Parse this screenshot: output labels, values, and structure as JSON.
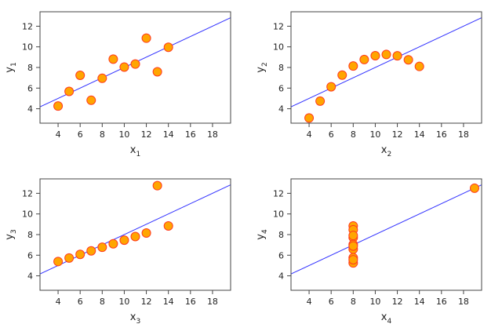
{
  "chart_data": [
    {
      "type": "scatter",
      "xlabel": {
        "base": "x",
        "sub": "1"
      },
      "ylabel": {
        "base": "y",
        "sub": "1"
      },
      "xlim": [
        3,
        19
      ],
      "ylim": [
        3,
        13
      ],
      "xticks": [
        4,
        6,
        8,
        10,
        12,
        14,
        16,
        18
      ],
      "yticks": [
        4,
        6,
        8,
        10,
        12
      ],
      "x": [
        10,
        8,
        13,
        9,
        11,
        14,
        6,
        4,
        12,
        7,
        5
      ],
      "y": [
        8.04,
        6.95,
        7.58,
        8.81,
        8.33,
        9.96,
        7.24,
        4.26,
        10.84,
        4.82,
        5.68
      ],
      "fit_line": {
        "intercept": 3.0,
        "slope": 0.5
      },
      "grid": false
    },
    {
      "type": "scatter",
      "xlabel": {
        "base": "x",
        "sub": "2"
      },
      "ylabel": {
        "base": "y",
        "sub": "2"
      },
      "xlim": [
        3,
        19
      ],
      "ylim": [
        3,
        13
      ],
      "xticks": [
        4,
        6,
        8,
        10,
        12,
        14,
        16,
        18
      ],
      "yticks": [
        4,
        6,
        8,
        10,
        12
      ],
      "x": [
        10,
        8,
        13,
        9,
        11,
        14,
        6,
        4,
        12,
        7,
        5
      ],
      "y": [
        9.14,
        8.14,
        8.74,
        8.77,
        9.26,
        8.1,
        6.13,
        3.1,
        9.13,
        7.26,
        4.74
      ],
      "fit_line": {
        "intercept": 3.0,
        "slope": 0.5
      },
      "grid": false
    },
    {
      "type": "scatter",
      "xlabel": {
        "base": "x",
        "sub": "3"
      },
      "ylabel": {
        "base": "y",
        "sub": "3"
      },
      "xlim": [
        3,
        19
      ],
      "ylim": [
        3,
        13
      ],
      "xticks": [
        4,
        6,
        8,
        10,
        12,
        14,
        16,
        18
      ],
      "yticks": [
        4,
        6,
        8,
        10,
        12
      ],
      "x": [
        10,
        8,
        13,
        9,
        11,
        14,
        6,
        4,
        12,
        7,
        5
      ],
      "y": [
        7.46,
        6.77,
        12.74,
        7.11,
        7.81,
        8.84,
        6.08,
        5.39,
        8.15,
        6.42,
        5.73
      ],
      "fit_line": {
        "intercept": 3.0,
        "slope": 0.5
      },
      "grid": false
    },
    {
      "type": "scatter",
      "xlabel": {
        "base": "x",
        "sub": "4"
      },
      "ylabel": {
        "base": "y",
        "sub": "4"
      },
      "xlim": [
        3,
        19
      ],
      "ylim": [
        3,
        13
      ],
      "xticks": [
        4,
        6,
        8,
        10,
        12,
        14,
        16,
        18
      ],
      "yticks": [
        4,
        6,
        8,
        10,
        12
      ],
      "x": [
        8,
        8,
        8,
        8,
        8,
        8,
        8,
        19,
        8,
        8,
        8
      ],
      "y": [
        6.58,
        5.76,
        7.71,
        8.84,
        8.47,
        7.04,
        5.25,
        12.5,
        5.56,
        7.91,
        6.89
      ],
      "fit_line": {
        "intercept": 3.0,
        "slope": 0.5
      },
      "grid": false
    }
  ],
  "colors": {
    "point_fill": "#FFA500",
    "point_stroke": "#FF3B1F",
    "line": "#3333FF",
    "axis": "#444444"
  }
}
